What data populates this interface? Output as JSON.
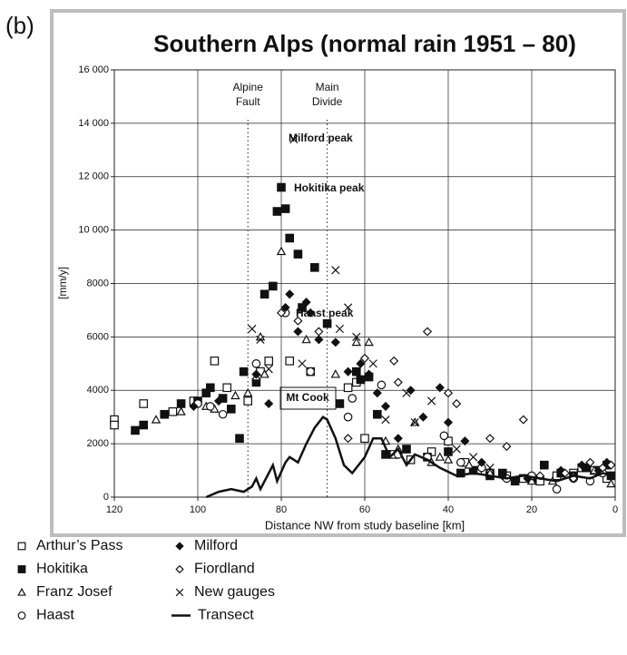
{
  "panel_label": "(b)",
  "chart_data": {
    "type": "scatter",
    "title": "Southern Alps (normal rain 1951 – 80)",
    "xlabel": "Distance NW from study baseline  [km]",
    "ylabel": "[mm/y]",
    "xlim": [
      120,
      0
    ],
    "ylim": [
      0,
      16000
    ],
    "xticks": [
      120,
      100,
      80,
      60,
      40,
      20,
      0
    ],
    "yticks": [
      0,
      2000,
      4000,
      6000,
      8000,
      {
        "value": 10000,
        "label": "10 000"
      },
      {
        "value": 12000,
        "label": "12 000"
      },
      {
        "value": 14000,
        "label": "14 000"
      },
      {
        "value": 16000,
        "label": "16 000"
      }
    ],
    "grid": true,
    "vlines": [
      {
        "x": 88,
        "label": [
          "Alpine",
          "Fault"
        ]
      },
      {
        "x": 69,
        "label": [
          "Main",
          "Divide"
        ]
      }
    ],
    "annotations": [
      "Milford peak",
      "Hokitika peak",
      "Haast peak",
      "Mt Cook"
    ],
    "series": [
      {
        "name": "Arthur’s Pass",
        "marker": "square-open",
        "color": "#111",
        "x": [
          120,
          120,
          113,
          106,
          101,
          96,
          93,
          88,
          85,
          83,
          78,
          73,
          64,
          62,
          60,
          53,
          49,
          44,
          40,
          36,
          33,
          30,
          26,
          22,
          18,
          14,
          10,
          8,
          5,
          2
        ],
        "values": [
          2900,
          2700,
          3500,
          3200,
          3600,
          5100,
          4100,
          3600,
          4700,
          5100,
          5100,
          4700,
          4100,
          4300,
          2200,
          1600,
          1400,
          1700,
          2100,
          1300,
          1000,
          900,
          800,
          700,
          600,
          800,
          900,
          1100,
          1000,
          700
        ]
      },
      {
        "name": "Hokitika",
        "marker": "square",
        "color": "#111",
        "x": [
          115,
          113,
          108,
          104,
          100,
          98,
          97,
          94,
          92,
          90,
          89,
          86,
          84,
          82,
          81,
          80,
          79,
          78,
          76,
          75,
          72,
          69,
          66,
          62,
          61,
          59,
          57,
          55,
          50,
          45,
          40,
          37,
          34,
          30,
          27,
          24,
          20,
          17,
          13,
          10,
          7,
          4,
          2,
          1
        ],
        "values": [
          2500,
          2700,
          3100,
          3500,
          3600,
          3900,
          4100,
          3700,
          3300,
          2200,
          4700,
          4300,
          7600,
          7900,
          10700,
          11600,
          10800,
          9700,
          9100,
          7100,
          8600,
          6500,
          3500,
          4700,
          4400,
          4500,
          3100,
          1600,
          1800,
          1500,
          1700,
          900,
          1000,
          800,
          900,
          600,
          700,
          1200,
          900,
          800,
          1100,
          1000,
          1200,
          800
        ]
      },
      {
        "name": "Franz Josef",
        "marker": "triangle-open",
        "color": "#111",
        "x": [
          110,
          104,
          98,
          96,
          91,
          88,
          86,
          85,
          84,
          80,
          74,
          67,
          62,
          59,
          55,
          52,
          48,
          44,
          42,
          40,
          35,
          30,
          20,
          15,
          10,
          5,
          1
        ],
        "values": [
          2900,
          3200,
          3400,
          3300,
          3800,
          3900,
          4500,
          6000,
          4600,
          9200,
          5900,
          4600,
          5800,
          5800,
          2100,
          1800,
          2800,
          1300,
          1500,
          1400,
          1200,
          900,
          600,
          600,
          800,
          1000,
          500
        ]
      },
      {
        "name": "Haast",
        "marker": "circle-open",
        "color": "#111",
        "x": [
          100,
          97,
          94,
          86,
          79,
          73,
          64,
          63,
          56,
          52,
          45,
          41,
          37,
          32,
          26,
          20,
          14,
          10,
          6,
          3
        ],
        "values": [
          3500,
          3400,
          3100,
          5000,
          6900,
          4700,
          3000,
          3700,
          4200,
          1600,
          1500,
          2300,
          1300,
          1100,
          700,
          800,
          300,
          700,
          600,
          900
        ]
      },
      {
        "name": "Milford",
        "marker": "diamond",
        "color": "#111",
        "x": [
          101,
          98,
          95,
          86,
          83,
          79,
          78,
          76,
          74,
          73,
          71,
          67,
          64,
          61,
          59,
          57,
          55,
          52,
          49,
          46,
          42,
          40,
          36,
          32,
          27,
          21,
          13,
          8,
          4,
          2
        ],
        "values": [
          3400,
          3900,
          3600,
          4600,
          3500,
          7100,
          7600,
          6200,
          7300,
          6900,
          5900,
          5800,
          4700,
          5000,
          4600,
          3900,
          3400,
          2200,
          4000,
          3000,
          4100,
          2800,
          2100,
          1300,
          800,
          700,
          1000,
          1200,
          1000,
          1300
        ]
      },
      {
        "name": "Fiordland",
        "marker": "diamond-open",
        "color": "#111",
        "x": [
          80,
          76,
          71,
          64,
          60,
          53,
          52,
          45,
          40,
          38,
          30,
          26,
          22,
          18,
          12,
          10,
          6,
          3,
          1
        ],
        "values": [
          6900,
          6600,
          6200,
          2200,
          5200,
          5100,
          4300,
          6200,
          3900,
          3500,
          2200,
          1900,
          2900,
          800,
          900,
          700,
          1300,
          1100,
          1200
        ]
      },
      {
        "name": "New gauges",
        "marker": "cross",
        "color": "#111",
        "x": [
          87,
          85,
          83,
          77,
          75,
          67,
          66,
          64,
          62,
          58,
          55,
          50,
          48,
          44,
          38,
          34,
          30
        ],
        "values": [
          6300,
          5900,
          4800,
          13400,
          5000,
          8500,
          6300,
          7100,
          6000,
          5000,
          2900,
          3900,
          2800,
          3600,
          1800,
          1500,
          1100
        ]
      },
      {
        "name": "Transect",
        "marker": "line",
        "color": "#111",
        "x": [
          98,
          95,
          92,
          89,
          87,
          86,
          85,
          83,
          82,
          81,
          79,
          78,
          76,
          74,
          72,
          70,
          69,
          67,
          65,
          63,
          60,
          58,
          56,
          54,
          52,
          50,
          48,
          45,
          42,
          38,
          34,
          30,
          26,
          22,
          18,
          14,
          10,
          6,
          3,
          0
        ],
        "values": [
          0,
          200,
          300,
          200,
          400,
          700,
          300,
          900,
          1200,
          600,
          1300,
          1500,
          1300,
          2000,
          2600,
          3000,
          2900,
          2200,
          1200,
          900,
          1500,
          2200,
          2200,
          1500,
          1800,
          1200,
          1600,
          1400,
          1100,
          800,
          900,
          800,
          700,
          800,
          700,
          600,
          800,
          700,
          900,
          800
        ]
      }
    ]
  }
}
